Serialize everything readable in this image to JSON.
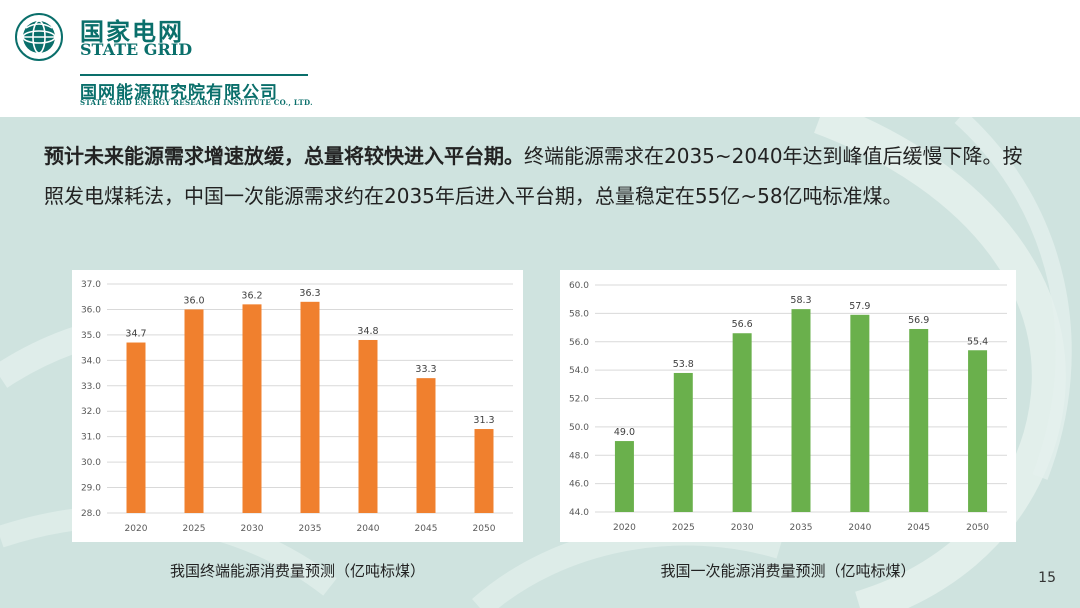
{
  "header": {
    "brand_cn": "国家电网",
    "brand_en": "STATE GRID",
    "institute_cn": "国网能源研究院有限公司",
    "institute_en": "STATE GRID ENERGY RESEARCH INSTITUTE CO., LTD.",
    "logo_icon": "globe-logo-icon"
  },
  "intro": {
    "lead": "预计未来能源需求增速放缓，总量将较快进入平台期。",
    "body": "终端能源需求在2035~2040年达到峰值后缓慢下降。按照发电煤耗法，中国一次能源需求约在2035年后进入平台期，总量稳定在55亿~58亿吨标准煤。"
  },
  "colors": {
    "background": "#cfe3df",
    "brand": "#0a6f6b",
    "left_bars": "#f0802e",
    "right_bars": "#6ab04c"
  },
  "chart_data": [
    {
      "type": "bar",
      "caption": "我国终端能源消费量预测（亿吨标煤）",
      "categories": [
        "2020",
        "2025",
        "2030",
        "2035",
        "2040",
        "2045",
        "2050"
      ],
      "values": [
        34.7,
        36.0,
        36.2,
        36.3,
        34.8,
        33.3,
        31.3
      ],
      "ylim": [
        28.0,
        37.0
      ],
      "yticks": [
        "28.0",
        "29.0",
        "30.0",
        "31.0",
        "32.0",
        "33.0",
        "34.0",
        "35.0",
        "36.0",
        "37.0"
      ],
      "grid": true,
      "color": "#f0802e"
    },
    {
      "type": "bar",
      "caption": "我国一次能源消费量预测（亿吨标煤）",
      "categories": [
        "2020",
        "2025",
        "2030",
        "2035",
        "2040",
        "2045",
        "2050"
      ],
      "values": [
        49.0,
        53.8,
        56.6,
        58.3,
        57.9,
        56.9,
        55.4
      ],
      "ylim": [
        44.0,
        60.0
      ],
      "yticks": [
        "44.0",
        "46.0",
        "48.0",
        "50.0",
        "52.0",
        "54.0",
        "56.0",
        "58.0",
        "60.0"
      ],
      "grid": true,
      "color": "#6ab04c"
    }
  ],
  "page": {
    "number": "15"
  }
}
